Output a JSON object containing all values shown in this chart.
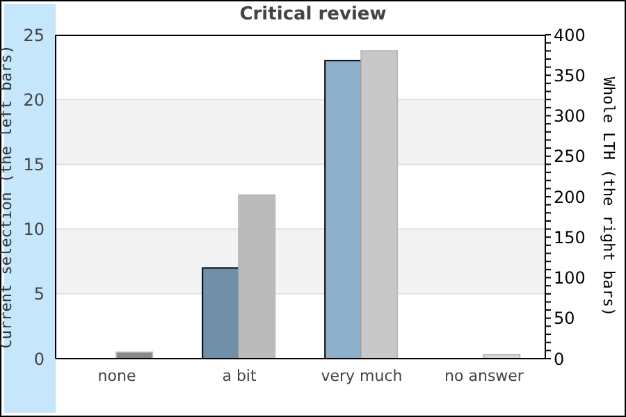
{
  "chart_data": {
    "type": "bar",
    "title": "Critical review",
    "ylabel": "Current selection (the left bars)",
    "y2label": "Whole LTH (the right bars)",
    "categories": [
      "none",
      "a bit",
      "very much",
      "no answer"
    ],
    "series": [
      {
        "axis": "y",
        "colors": [
          "#7090aa",
          "#7090aa",
          "#8fb0cb",
          "#7090aa"
        ],
        "values": [
          0,
          7,
          23,
          0
        ]
      },
      {
        "axis": "y2",
        "colors": [
          "#888888",
          "#bbbbbb",
          "#c8c8c8",
          "#d8d8d8"
        ],
        "values": [
          8,
          202,
          380,
          5
        ]
      }
    ],
    "ylim": [
      0,
      25
    ],
    "yticks": [
      0,
      5,
      10,
      15,
      20,
      25
    ],
    "y2lim": [
      0,
      400
    ],
    "y2ticks": [
      0,
      {
        "value": 10,
        "label": null
      },
      {
        "value": 20,
        "label": null
      },
      {
        "value": 30,
        "label": null
      },
      {
        "value": 40,
        "label": null
      },
      50,
      {
        "value": 60,
        "label": null
      },
      {
        "value": 70,
        "label": null
      },
      {
        "value": 80,
        "label": null
      },
      {
        "value": 90,
        "label": null
      },
      100,
      {
        "value": 110,
        "label": null
      },
      {
        "value": 120,
        "label": null
      },
      {
        "value": 130,
        "label": null
      },
      {
        "value": 140,
        "label": null
      },
      150,
      {
        "value": 160,
        "label": null
      },
      {
        "value": 170,
        "label": null
      },
      {
        "value": 180,
        "label": null
      },
      {
        "value": 190,
        "label": null
      },
      200,
      {
        "value": 210,
        "label": null
      },
      {
        "value": 220,
        "label": null
      },
      {
        "value": 230,
        "label": null
      },
      {
        "value": 240,
        "label": null
      },
      250,
      {
        "value": 260,
        "label": null
      },
      {
        "value": 270,
        "label": null
      },
      {
        "value": 280,
        "label": null
      },
      {
        "value": 290,
        "label": null
      },
      300,
      {
        "value": 310,
        "label": null
      },
      {
        "value": 320,
        "label": null
      },
      {
        "value": 330,
        "label": null
      },
      {
        "value": 340,
        "label": null
      },
      350,
      {
        "value": 360,
        "label": null
      },
      {
        "value": 370,
        "label": null
      },
      {
        "value": 380,
        "label": null
      },
      {
        "value": 390,
        "label": null
      },
      400
    ],
    "grid": "y",
    "legend": false
  }
}
